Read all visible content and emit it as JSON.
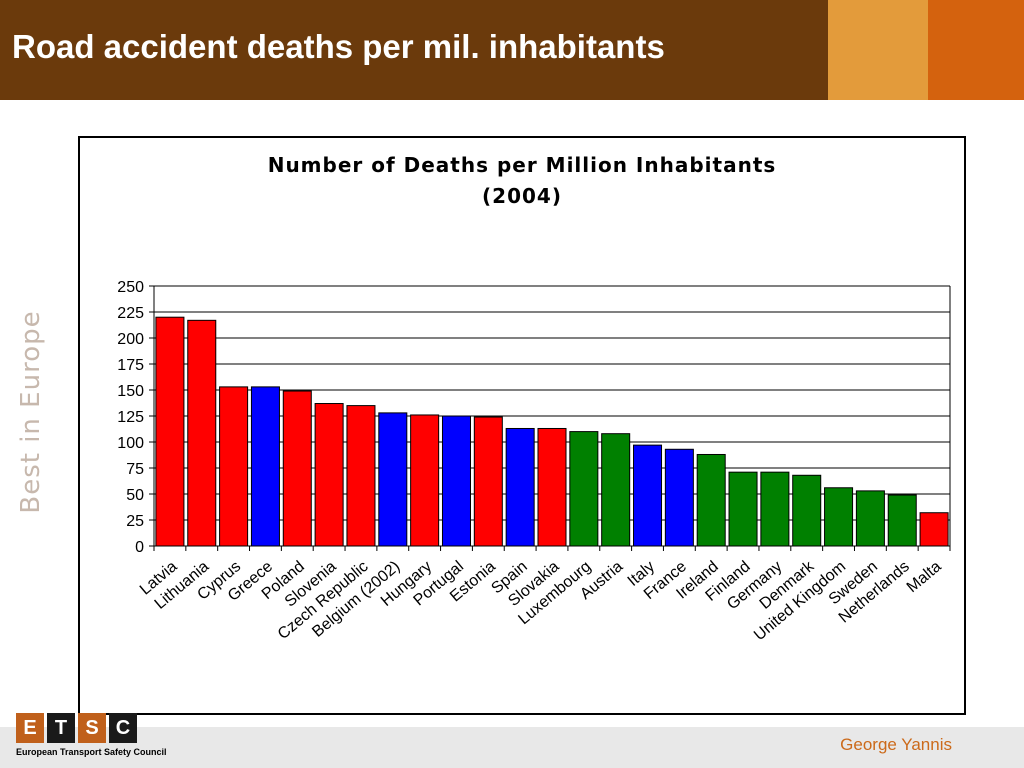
{
  "slide": {
    "title": "Road accident deaths per mil. inhabitants",
    "side_text": "Best in Europe",
    "author": "George Yannis",
    "logo": {
      "letters": [
        "E",
        "T",
        "S",
        "C"
      ],
      "caption": "European Transport Safety Council"
    }
  },
  "colors": {
    "header_bg": "#6b3a0c",
    "accent_light": "#e39b3b",
    "accent_dark": "#d4620e",
    "red": "#ff0000",
    "blue": "#0000ff",
    "green": "#008000"
  },
  "chart_data": {
    "type": "bar",
    "title": [
      "Number of Deaths per Million Inhabitants",
      "(2004)"
    ],
    "categories": [
      "Latvia",
      "Lithuania",
      "Cyprus",
      "Greece",
      "Poland",
      "Slovenia",
      "Czech Republic",
      "Belgium (2002)",
      "Hungary",
      "Portugal",
      "Estonia",
      "Spain",
      "Slovakia",
      "Luxembourg",
      "Austria",
      "Italy",
      "France",
      "Ireland",
      "Finland",
      "Germany",
      "Denmark",
      "United Kingdom",
      "Sweden",
      "Netherlands",
      "Malta"
    ],
    "values": [
      220,
      217,
      153,
      153,
      149,
      137,
      135,
      128,
      126,
      125,
      124,
      113,
      113,
      110,
      108,
      97,
      93,
      88,
      71,
      71,
      68,
      56,
      53,
      49,
      32
    ],
    "bar_colors": [
      "red",
      "red",
      "red",
      "blue",
      "red",
      "red",
      "red",
      "blue",
      "red",
      "blue",
      "red",
      "blue",
      "red",
      "green",
      "green",
      "blue",
      "blue",
      "green",
      "green",
      "green",
      "green",
      "green",
      "green",
      "green",
      "red"
    ],
    "ylim": [
      0,
      250
    ],
    "yticks": [
      0,
      25,
      50,
      75,
      100,
      125,
      150,
      175,
      200,
      225,
      250
    ],
    "grid": true,
    "xlabel": "",
    "ylabel": ""
  }
}
